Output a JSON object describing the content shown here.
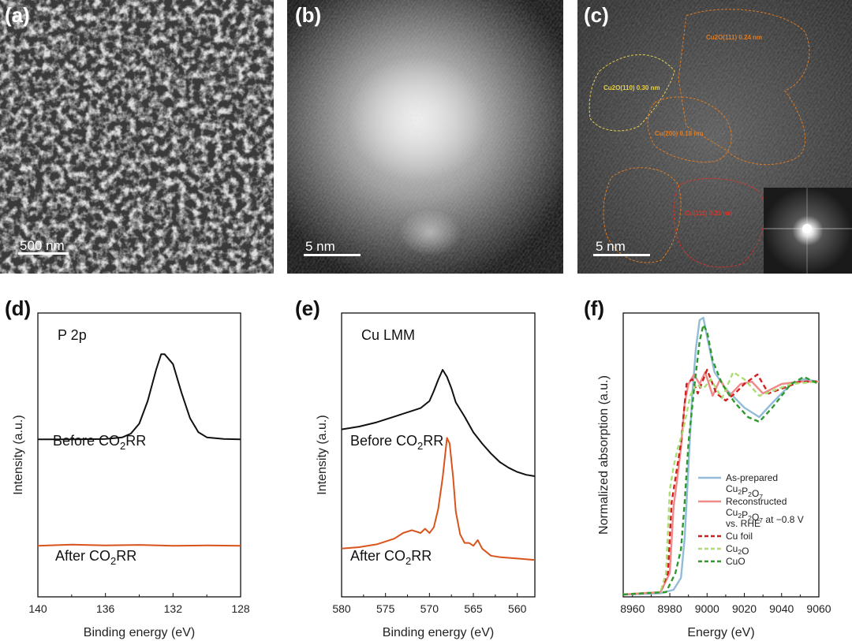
{
  "panels": {
    "a": {
      "letter": "(a)",
      "scale_label": "500 nm"
    },
    "b": {
      "letter": "(b)",
      "scale_label": "5 nm"
    },
    "c": {
      "letter": "(c)",
      "scale_label": "5 nm",
      "annotations": [
        "Cu2O(111) 0.24 nm",
        "Cu2O(110) 0.30 nm",
        "Cu(200) 0.18 nm",
        "Cu(111) 0.21 nm"
      ]
    },
    "d": {
      "letter": "(d)"
    },
    "e": {
      "letter": "(e)"
    },
    "f": {
      "letter": "(f)"
    }
  },
  "colors": {
    "black": "#111111",
    "orange": "#d9541c",
    "blue": "#93bcd9",
    "pink": "#ee8a8a",
    "red_dash": "#d21f1f",
    "lightgreen_dash": "#a9dd72",
    "green_dash": "#2e9a2e",
    "ann_orange": "#e07b22",
    "ann_yellow": "#e6d04a",
    "ann_red": "#d8342c"
  },
  "chart_data": [
    {
      "id": "d",
      "type": "line",
      "title": "P 2p",
      "xlabel": "Binding energy (eV)",
      "ylabel": "Intensity (a.u.)",
      "xlim": [
        140,
        128
      ],
      "xticks": [
        140,
        136,
        132,
        128
      ],
      "ylim": [
        0,
        1
      ],
      "series": [
        {
          "name": "Before CO2RR",
          "label_main": "Before CO",
          "label_sub": "2",
          "label_tail": "RR",
          "color": "#111111",
          "x": [
            140,
            138,
            136,
            135,
            134.5,
            134,
            133.5,
            133,
            132.7,
            132.5,
            132,
            131.5,
            131,
            130.5,
            130,
            129,
            128
          ],
          "y": [
            0.555,
            0.555,
            0.556,
            0.562,
            0.575,
            0.61,
            0.69,
            0.8,
            0.855,
            0.855,
            0.82,
            0.72,
            0.63,
            0.58,
            0.562,
            0.556,
            0.555
          ]
        },
        {
          "name": "After CO2RR",
          "label_main": "After CO",
          "label_sub": "2",
          "label_tail": "RR",
          "color": "#d9541c",
          "x": [
            140,
            138,
            136,
            134,
            132,
            130,
            128
          ],
          "y": [
            0.18,
            0.184,
            0.181,
            0.183,
            0.18,
            0.181,
            0.18
          ]
        }
      ]
    },
    {
      "id": "e",
      "type": "line",
      "title": "Cu LMM",
      "xlabel": "Binding energy (eV)",
      "ylabel": "Intensity (a.u.)",
      "xlim": [
        580,
        558
      ],
      "xticks": [
        580,
        575,
        570,
        565,
        560
      ],
      "ylim": [
        0,
        1
      ],
      "series": [
        {
          "name": "Before CO2RR",
          "label_main": "Before CO",
          "label_sub": "2",
          "label_tail": "RR",
          "color": "#111111",
          "x": [
            580,
            578,
            576,
            574,
            572,
            571,
            570,
            569.5,
            569,
            568.5,
            568,
            567.5,
            567,
            566,
            565,
            564,
            563,
            562,
            561,
            560,
            559,
            558
          ],
          "y": [
            0.59,
            0.6,
            0.615,
            0.635,
            0.655,
            0.665,
            0.69,
            0.725,
            0.765,
            0.8,
            0.775,
            0.735,
            0.685,
            0.635,
            0.58,
            0.54,
            0.505,
            0.475,
            0.455,
            0.44,
            0.43,
            0.425
          ]
        },
        {
          "name": "After CO2RR",
          "label_main": "After CO",
          "label_sub": "2",
          "label_tail": "RR",
          "color": "#d9541c",
          "x": [
            580,
            578,
            576,
            574,
            573,
            572,
            571,
            570.5,
            570,
            569.5,
            569,
            568.5,
            568,
            567.7,
            567.3,
            567,
            566.5,
            566,
            565.5,
            565,
            564.5,
            564,
            563,
            562,
            560,
            558
          ],
          "y": [
            0.17,
            0.175,
            0.185,
            0.205,
            0.225,
            0.235,
            0.225,
            0.24,
            0.225,
            0.245,
            0.31,
            0.42,
            0.56,
            0.54,
            0.42,
            0.3,
            0.22,
            0.19,
            0.19,
            0.18,
            0.2,
            0.17,
            0.145,
            0.14,
            0.135,
            0.13
          ]
        }
      ]
    },
    {
      "id": "f",
      "type": "line",
      "title": "",
      "xlabel": "Energy (eV)",
      "ylabel": "Normalized absorption (a.u.)",
      "xlim": [
        8955,
        9060
      ],
      "xticks": [
        8960,
        8980,
        9000,
        9020,
        9040,
        9060
      ],
      "ylim": [
        0,
        1.2
      ],
      "series": [
        {
          "name": "As-prepared Cu2P2O7",
          "legend_lines": [
            "As-prepared",
            "Cu2P2O7"
          ],
          "color": "#93bcd9",
          "dash": "",
          "x": [
            8955,
            8975,
            8982,
            8986,
            8988,
            8990,
            8992,
            8994,
            8996,
            8998,
            9000,
            9004,
            9010,
            9020,
            9028,
            9035,
            9045,
            9052,
            9060
          ],
          "y": [
            0.01,
            0.015,
            0.03,
            0.08,
            0.25,
            0.55,
            0.85,
            1.05,
            1.17,
            1.18,
            1.1,
            0.95,
            0.88,
            0.8,
            0.76,
            0.82,
            0.9,
            0.92,
            0.91
          ]
        },
        {
          "name": "Reconstructed Cu2P2O7 at -0.8 V vs. RHE",
          "legend_lines": [
            "Reconstructed",
            "Cu2P2O7 at −0.8 V",
            "vs. RHE"
          ],
          "color": "#ee8a8a",
          "dash": "",
          "x": [
            8955,
            8975,
            8980,
            8982,
            8984,
            8986,
            8988,
            8990,
            8993,
            8996,
            8999,
            9003,
            9007,
            9012,
            9018,
            9024,
            9030,
            9040,
            9050,
            9060
          ],
          "y": [
            0.01,
            0.02,
            0.1,
            0.38,
            0.5,
            0.63,
            0.82,
            0.9,
            0.94,
            0.9,
            0.95,
            0.85,
            0.92,
            0.85,
            0.9,
            0.91,
            0.86,
            0.9,
            0.91,
            0.91
          ]
        },
        {
          "name": "Cu foil",
          "legend_lines": [
            "Cu foil"
          ],
          "color": "#d21f1f",
          "dash": "6,4",
          "x": [
            8955,
            8975,
            8979,
            8981,
            8983,
            8986,
            8989,
            8992,
            8995,
            9000,
            9005,
            9010,
            9015,
            9020,
            9027,
            9033,
            9040,
            9050,
            9060
          ],
          "y": [
            0.01,
            0.02,
            0.1,
            0.4,
            0.5,
            0.65,
            0.9,
            0.92,
            0.86,
            0.96,
            0.86,
            0.83,
            0.86,
            0.9,
            0.94,
            0.86,
            0.88,
            0.91,
            0.91
          ]
        },
        {
          "name": "Cu2O",
          "legend_lines": [
            "Cu2O"
          ],
          "color": "#a9dd72",
          "dash": "6,4",
          "x": [
            8955,
            8975,
            8978,
            8980,
            8982,
            8984,
            8987,
            8991,
            8994,
            8998,
            9002,
            9008,
            9014,
            9020,
            9028,
            9035,
            9045,
            9060
          ],
          "y": [
            0.01,
            0.02,
            0.1,
            0.45,
            0.55,
            0.62,
            0.7,
            0.85,
            0.9,
            0.88,
            0.92,
            0.84,
            0.95,
            0.92,
            0.85,
            0.87,
            0.9,
            0.91
          ]
        },
        {
          "name": "CuO",
          "legend_lines": [
            "CuO"
          ],
          "color": "#2e9a2e",
          "dash": "6,4",
          "x": [
            8955,
            8978,
            8983,
            8986,
            8988,
            8990,
            8993,
            8996,
            8998,
            9000,
            9003,
            9008,
            9015,
            9022,
            9028,
            9035,
            9045,
            9052,
            9060
          ],
          "y": [
            0.01,
            0.02,
            0.1,
            0.2,
            0.4,
            0.65,
            0.88,
            1.08,
            1.15,
            1.12,
            1.0,
            0.9,
            0.82,
            0.76,
            0.74,
            0.8,
            0.9,
            0.93,
            0.9
          ]
        }
      ]
    }
  ]
}
